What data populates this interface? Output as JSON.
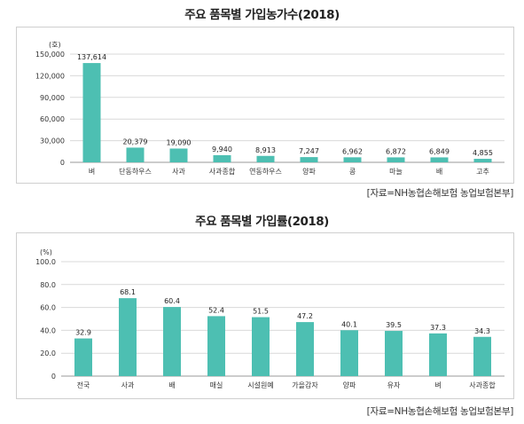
{
  "charts": [
    {
      "title": "주요 품목별 가입농가수(2018)",
      "source": "[자료=NH농협손해보험 농업보험본부]",
      "unit": "(호)",
      "color": "#4dbfb2"
    },
    {
      "title": "주요 품목별 가입률(2018)",
      "source": "[자료=NH농협손해보험 농업보험본부]",
      "unit": "(%)",
      "color": "#4dbfb2"
    }
  ],
  "chart_data": [
    {
      "type": "bar",
      "title": "주요 품목별 가입농가수(2018)",
      "ylabel": "(호)",
      "ylim": [
        0,
        150000
      ],
      "yticks": [
        "0",
        "30,000",
        "60,000",
        "90,000",
        "120,000",
        "150,000"
      ],
      "categories": [
        "벼",
        "단동하우스",
        "사과",
        "사과종합",
        "연동하우스",
        "양파",
        "콩",
        "마늘",
        "배",
        "고추"
      ],
      "values": [
        137614,
        20379,
        19090,
        9940,
        8913,
        7247,
        6962,
        6872,
        6849,
        4855
      ],
      "data_labels": [
        "137,614",
        "20,379",
        "19,090",
        "9,940",
        "8,913",
        "7,247",
        "6,962",
        "6,872",
        "6,849",
        "4,855"
      ],
      "grid": true
    },
    {
      "type": "bar",
      "title": "주요 품목별 가입률(2018)",
      "ylabel": "(%)",
      "ylim": [
        0,
        100
      ],
      "yticks": [
        "0",
        "20.0",
        "40.0",
        "60.0",
        "80.0",
        "100.0"
      ],
      "categories": [
        "전국",
        "사과",
        "배",
        "매실",
        "시설원예",
        "가을감자",
        "양파",
        "유자",
        "벼",
        "사과종합"
      ],
      "values": [
        32.9,
        68.1,
        60.4,
        52.4,
        51.5,
        47.2,
        40.1,
        39.5,
        37.3,
        34.3
      ],
      "data_labels": [
        "32.9",
        "68.1",
        "60.4",
        "52.4",
        "51.5",
        "47.2",
        "40.1",
        "39.5",
        "37.3",
        "34.3"
      ],
      "grid": true
    }
  ]
}
